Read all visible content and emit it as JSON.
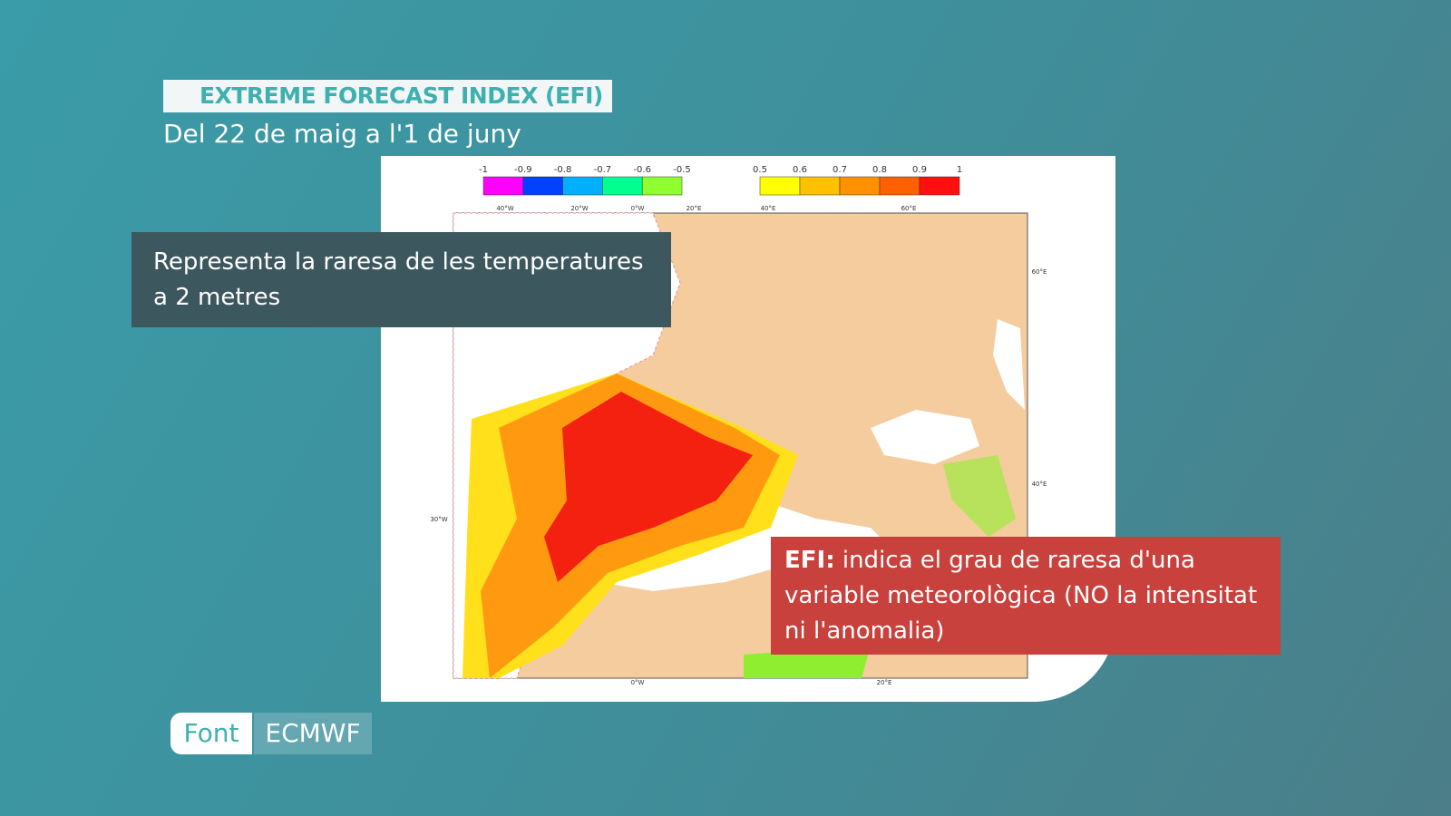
{
  "header": {
    "title": "EXTREME FORECAST INDEX (EFI)",
    "subtitle": "Del 22 de maig a l'1 de juny"
  },
  "colorbar": {
    "negative_ticks": [
      -1,
      -0.9,
      -0.8,
      -0.7,
      -0.6,
      -0.5
    ],
    "negative_colors": [
      "#ff00ff",
      "#0040ff",
      "#00b0ff",
      "#00ff90",
      "#90ff30"
    ],
    "positive_ticks": [
      0.5,
      0.6,
      0.7,
      0.8,
      0.9,
      1
    ],
    "positive_colors": [
      "#ffff00",
      "#ffc000",
      "#ff9000",
      "#ff6000",
      "#ff1010"
    ]
  },
  "map": {
    "top_labels": [
      "40°W",
      "20°W",
      "0°W",
      "20°E",
      "40°E",
      "60°E"
    ],
    "right_labels": [
      "60°E",
      "40°E"
    ],
    "left_labels": [
      "30°W"
    ],
    "bottom_labels": [
      "0°W",
      "20°E"
    ]
  },
  "caption": "Representa la raresa de les temperatures a 2 metres",
  "note": {
    "bold": "EFI:",
    "text": "indica el grau de raresa d'una variable meteorològica (NO la intensitat ni l'anomalia)"
  },
  "source": {
    "label": "Font",
    "value": "ECMWF"
  }
}
